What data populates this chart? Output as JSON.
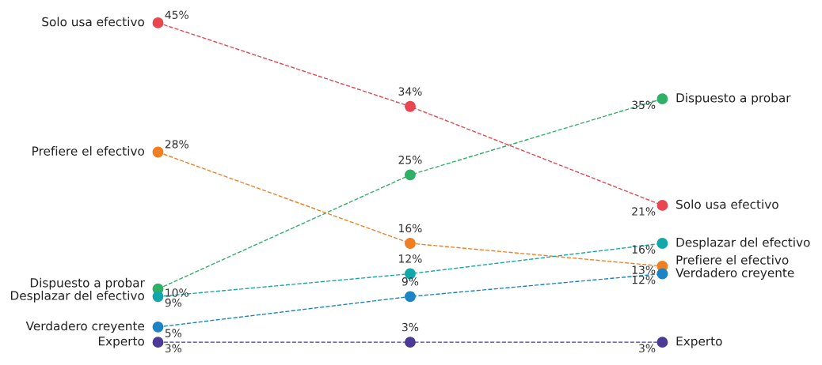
{
  "chart_data": {
    "type": "line",
    "categories": [
      null,
      null,
      null
    ],
    "series": [
      {
        "name": "Solo usa efectivo",
        "color": "#e8474f",
        "values": [
          45,
          34,
          21
        ],
        "value_labels": [
          "45%",
          "34%",
          "21%"
        ]
      },
      {
        "name": "Prefiere el efectivo",
        "color": "#f07f23",
        "values": [
          28,
          16,
          13
        ],
        "value_labels": [
          "28%",
          "16%",
          "13%"
        ]
      },
      {
        "name": "Dispuesto a probar",
        "color": "#2fb067",
        "values": [
          10,
          25,
          35
        ],
        "value_labels": [
          "10%",
          "25%",
          "35%"
        ]
      },
      {
        "name": "Desplazar del efectivo",
        "color": "#12a8ab",
        "values": [
          9,
          12,
          16
        ],
        "value_labels": [
          "9%",
          "12%",
          "16%"
        ]
      },
      {
        "name": "Verdadero creyente",
        "color": "#1a84c7",
        "values": [
          5,
          9,
          12
        ],
        "value_labels": [
          "5%",
          "9%",
          "12%"
        ]
      },
      {
        "name": "Experto",
        "color": "#4b3a96",
        "values": [
          3,
          3,
          3
        ],
        "value_labels": [
          "3%",
          "3%",
          "3%"
        ]
      }
    ],
    "line_style": "dashed",
    "marker": "circle",
    "legend": false
  }
}
